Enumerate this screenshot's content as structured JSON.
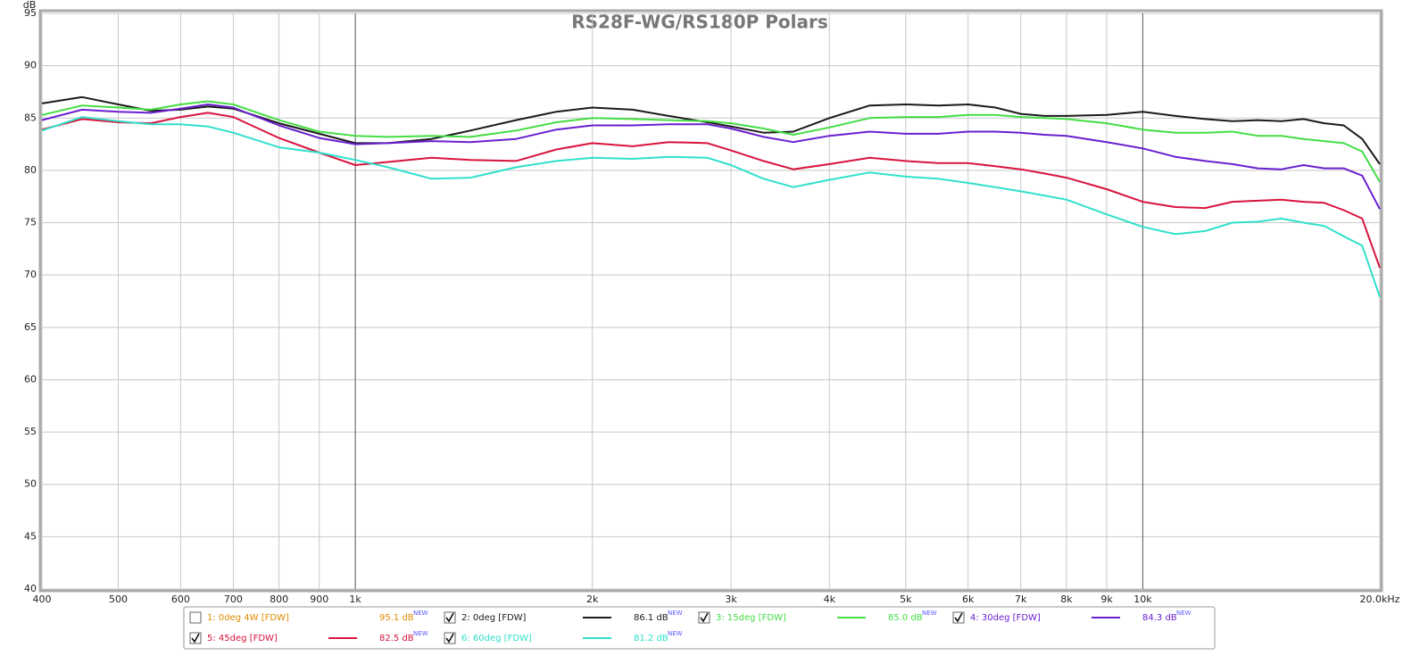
{
  "chart_data": {
    "type": "line",
    "title": "RS28F-WG/RS180P Polars",
    "y_unit": "dB",
    "log_x": true,
    "grid": true,
    "xlim": [
      400,
      20000
    ],
    "ylim": [
      40,
      95
    ],
    "xticks": [
      400,
      500,
      600,
      700,
      800,
      900,
      {
        "value": 1000,
        "label": "1k"
      },
      {
        "value": 2000,
        "label": "2k"
      },
      {
        "value": 3000,
        "label": "3k"
      },
      {
        "value": 4000,
        "label": "4k"
      },
      {
        "value": 5000,
        "label": "5k"
      },
      {
        "value": 6000,
        "label": "6k"
      },
      {
        "value": 7000,
        "label": "7k"
      },
      {
        "value": 8000,
        "label": "8k"
      },
      {
        "value": 9000,
        "label": "9k"
      },
      {
        "value": 10000,
        "label": "10k"
      },
      {
        "value": 20000,
        "label": "20.0kHz"
      }
    ],
    "yticks": [
      40,
      45,
      50,
      55,
      60,
      65,
      70,
      75,
      80,
      85,
      90,
      95
    ],
    "x": [
      400,
      450,
      500,
      550,
      600,
      650,
      700,
      800,
      900,
      1000,
      1100,
      1250,
      1400,
      1600,
      1800,
      2000,
      2250,
      2500,
      2800,
      3000,
      3300,
      3600,
      4000,
      4500,
      5000,
      5500,
      6000,
      6500,
      7000,
      7500,
      8000,
      9000,
      10000,
      11000,
      12000,
      13000,
      14000,
      15000,
      16000,
      17000,
      18000,
      19000,
      20000
    ],
    "series": [
      {
        "name": "1: 0deg 4W [FDW]",
        "color": "#e08a00",
        "checked": false,
        "level": "95.1 dB",
        "badge": "NEW"
      },
      {
        "name": "2: 0deg [FDW]",
        "color": "#1a1a1a",
        "checked": true,
        "level": "86.1 dB",
        "badge": "NEW",
        "values": [
          86.4,
          87.0,
          86.3,
          85.7,
          85.8,
          86.1,
          85.9,
          84.5,
          83.5,
          82.6,
          82.6,
          83.0,
          83.8,
          84.8,
          85.6,
          86.0,
          85.8,
          85.2,
          84.6,
          84.2,
          83.6,
          83.7,
          85.0,
          86.2,
          86.3,
          86.2,
          86.3,
          86.0,
          85.4,
          85.2,
          85.2,
          85.3,
          85.6,
          85.2,
          84.9,
          84.7,
          84.8,
          84.7,
          84.9,
          84.5,
          84.3,
          83.0,
          80.6
        ]
      },
      {
        "name": "3: 15deg [FDW]",
        "color": "#44dd44",
        "checked": true,
        "level": "85.0 dB",
        "badge": "NEW",
        "values": [
          85.3,
          86.2,
          86.0,
          85.8,
          86.3,
          86.6,
          86.3,
          84.8,
          83.7,
          83.3,
          83.2,
          83.3,
          83.2,
          83.8,
          84.6,
          85.0,
          84.9,
          84.8,
          84.7,
          84.5,
          84.0,
          83.4,
          84.1,
          85.0,
          85.1,
          85.1,
          85.3,
          85.3,
          85.1,
          85.0,
          84.9,
          84.5,
          83.9,
          83.6,
          83.6,
          83.7,
          83.3,
          83.3,
          83.0,
          82.8,
          82.6,
          81.8,
          78.9
        ]
      },
      {
        "name": "4: 30deg [FDW]",
        "color": "#6a1fd0",
        "checked": true,
        "level": "84.3 dB",
        "badge": "NEW",
        "values": [
          84.8,
          85.8,
          85.6,
          85.5,
          85.9,
          86.3,
          86.0,
          84.3,
          83.1,
          82.5,
          82.6,
          82.8,
          82.7,
          83.0,
          83.9,
          84.3,
          84.3,
          84.4,
          84.4,
          84.0,
          83.2,
          82.7,
          83.3,
          83.7,
          83.5,
          83.5,
          83.7,
          83.7,
          83.6,
          83.4,
          83.3,
          82.7,
          82.1,
          81.3,
          80.9,
          80.6,
          80.2,
          80.1,
          80.5,
          80.2,
          80.2,
          79.5,
          76.3
        ]
      },
      {
        "name": "5: 45deg [FDW]",
        "color": "#d8143c",
        "checked": true,
        "level": "82.5 dB",
        "badge": "NEW",
        "values": [
          83.9,
          84.9,
          84.6,
          84.5,
          85.1,
          85.5,
          85.1,
          83.1,
          81.7,
          80.5,
          80.8,
          81.2,
          81.0,
          80.9,
          82.0,
          82.6,
          82.3,
          82.7,
          82.6,
          81.9,
          80.9,
          80.1,
          80.6,
          81.2,
          80.9,
          80.7,
          80.7,
          80.4,
          80.1,
          79.7,
          79.3,
          78.2,
          77.0,
          76.5,
          76.4,
          77.0,
          77.1,
          77.2,
          77.0,
          76.9,
          76.2,
          75.4,
          70.7
        ]
      },
      {
        "name": "6: 60deg [FDW]",
        "color": "#30e0cc",
        "checked": true,
        "level": "81.2 dB",
        "badge": "NEW",
        "values": [
          83.8,
          85.1,
          84.7,
          84.4,
          84.4,
          84.2,
          83.6,
          82.2,
          81.7,
          81.0,
          80.3,
          79.2,
          79.3,
          80.3,
          80.9,
          81.2,
          81.1,
          81.3,
          81.2,
          80.5,
          79.2,
          78.4,
          79.1,
          79.8,
          79.4,
          79.2,
          78.8,
          78.4,
          78.0,
          77.6,
          77.2,
          75.8,
          74.6,
          73.9,
          74.2,
          75.0,
          75.1,
          75.4,
          75.0,
          74.7,
          73.7,
          72.8,
          67.9
        ]
      }
    ]
  }
}
